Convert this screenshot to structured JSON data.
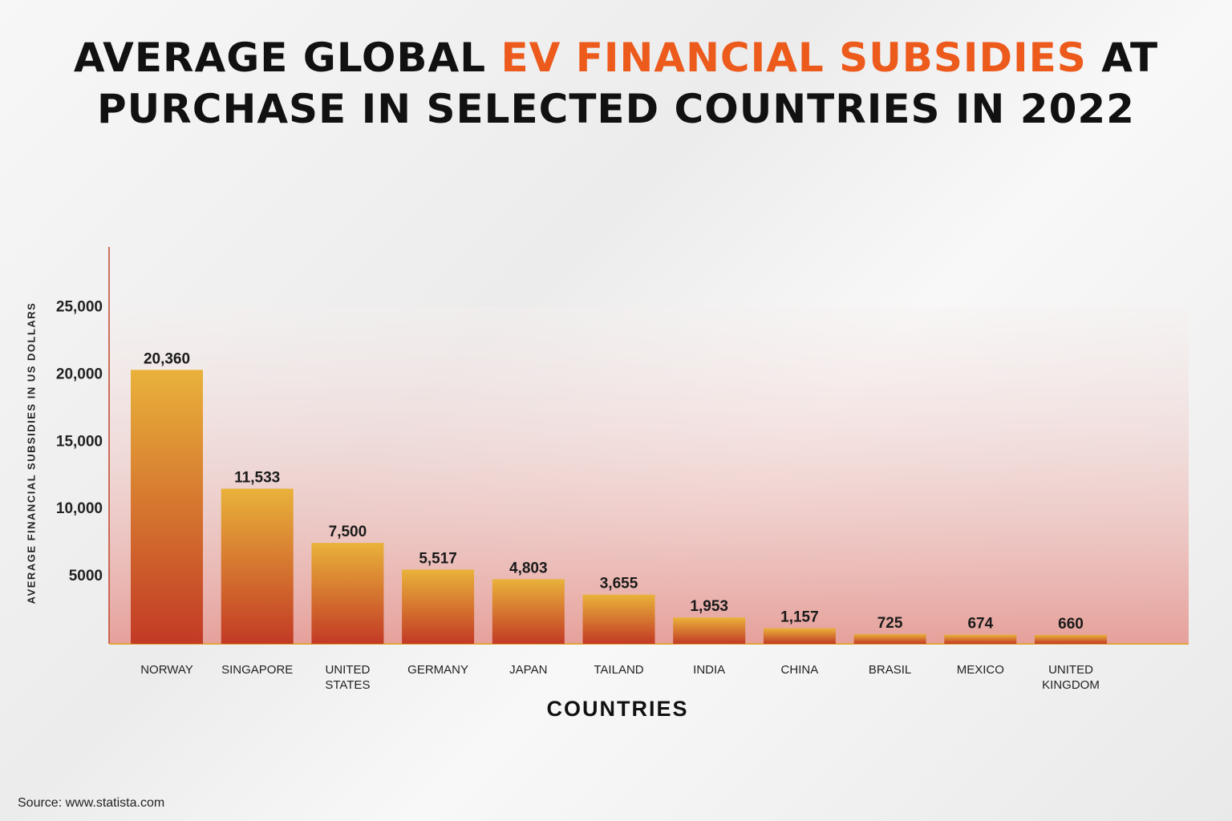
{
  "chart_data": {
    "type": "bar",
    "title": [
      {
        "text": "AVERAGE GLOBAL",
        "color": "#111111"
      },
      {
        "text": "EV FINANCIAL SUBSIDIES",
        "color": "#ec5a1c"
      },
      {
        "text": "AT",
        "color": "#111111"
      },
      {
        "text": "PURCHASE IN SELECTED COUNTRIES IN 2022",
        "color": "#111111"
      }
    ],
    "x_label": "COUNTRIES",
    "y_label": "AVERAGE FINANCIAL SUBSIDIES IN US DOLLARS",
    "source": "Source: www.statista.com",
    "categories": [
      "NORWAY",
      "SINGAPORE",
      "UNITED STATES",
      "GERMANY",
      "JAPAN",
      "TAILAND",
      "INDIA",
      "CHINA",
      "BRASIL",
      "MEXICO",
      "UNITED KINGDOM"
    ],
    "values": [
      20360,
      11533,
      7500,
      5517,
      4803,
      3655,
      1953,
      1157,
      725,
      674,
      660
    ],
    "value_labels": [
      "20,360",
      "11,533",
      "7,500",
      "5,517",
      "4,803",
      "3,655",
      "1,953",
      "1,157",
      "725",
      "674",
      "660"
    ],
    "color": [
      "#e9b23a",
      "#c23a25"
    ],
    "ylim": [
      0,
      29500
    ],
    "yticks": [
      5000,
      {
        "value": 10000,
        "label": "10,000"
      },
      {
        "value": 15000,
        "label": "15,000"
      },
      {
        "value": 20000,
        "label": "20,000"
      },
      {
        "value": 25000,
        "label": "25,000"
      }
    ],
    "grid": true
  }
}
